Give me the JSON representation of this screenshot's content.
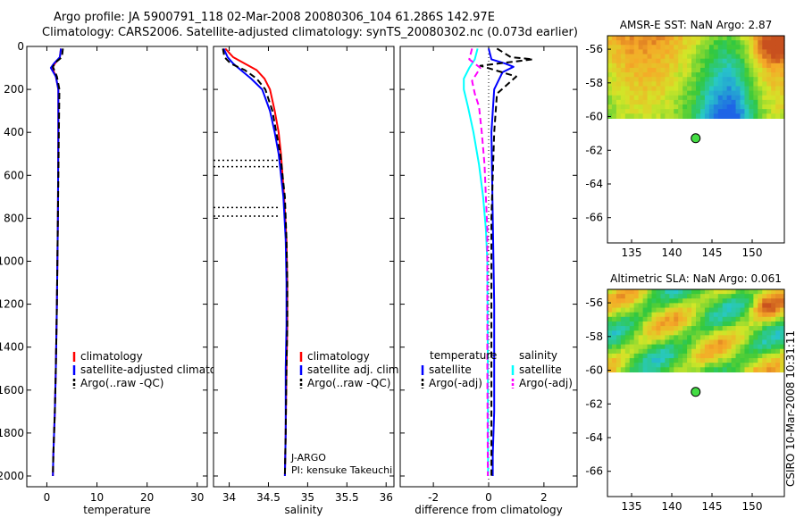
{
  "header": {
    "line1": "Argo profile: JA 5900791_118 02-Mar-2008 20080306_104 61.286S 142.97E",
    "line2": "Climatology: CARS2006. Satellite-adjusted climatology: synTS_20080302.nc (0.073d earlier)"
  },
  "colors": {
    "climatology": "#ff0000",
    "satellite": "#0000ff",
    "argo": "#000000",
    "sal_satellite": "#00ffff",
    "sal_argo": "#ff00ff",
    "float_marker": "#44dd44"
  },
  "chart_data": [
    {
      "id": "temperature",
      "type": "line",
      "xlabel": "temperature",
      "xlim": [
        -4,
        32
      ],
      "ylim": [
        2050,
        0
      ],
      "xticks": [
        "0",
        "10",
        "20",
        "30"
      ],
      "yticks": [
        "0",
        "200",
        "400",
        "600",
        "800",
        "1000",
        "1200",
        "1400",
        "1600",
        "1800",
        "2000"
      ],
      "legend": {
        "position": "lower-center",
        "entries": [
          "climatology",
          "satellite-adjusted climatology",
          "Argo(..raw -QC)"
        ]
      },
      "series": [
        {
          "name": "climatology",
          "color": "#ff0000",
          "style": "solid",
          "x": [
            2.8,
            2.6,
            1.6,
            1.1,
            1.8,
            2.3,
            2.3,
            2.2,
            2.0,
            1.8,
            1.6,
            1.3,
            1.2
          ],
          "y": [
            10,
            50,
            80,
            100,
            140,
            200,
            400,
            800,
            1200,
            1500,
            1700,
            1900,
            2000
          ]
        },
        {
          "name": "satellite-adjusted climatology",
          "color": "#0000ff",
          "style": "solid",
          "x": [
            2.8,
            2.6,
            1.4,
            0.8,
            1.8,
            2.3,
            2.3,
            2.2,
            2.0,
            1.8,
            1.6,
            1.3,
            1.2
          ],
          "y": [
            10,
            50,
            80,
            100,
            140,
            200,
            400,
            800,
            1200,
            1500,
            1700,
            1900,
            2000
          ]
        },
        {
          "name": "Argo(..raw -QC)",
          "color": "#000000",
          "style": "dashed",
          "x": [
            3.2,
            3.0,
            1.7,
            1.2,
            2.0,
            2.5,
            2.4,
            2.2,
            2.0,
            1.8,
            1.6,
            1.3,
            1.2
          ],
          "y": [
            10,
            50,
            75,
            95,
            140,
            200,
            400,
            800,
            1200,
            1500,
            1700,
            1900,
            2000
          ]
        }
      ]
    },
    {
      "id": "salinity",
      "type": "line",
      "xlabel": "salinity",
      "xlim": [
        33.8,
        36.1
      ],
      "ylim": [
        2050,
        0
      ],
      "xticks": [
        "34",
        "34.5",
        "35",
        "35.5",
        "36"
      ],
      "legend": {
        "position": "lower-center",
        "entries": [
          "climatology",
          "satellite adj. clim.",
          "Argo(..raw -QC)"
        ]
      },
      "annotations": [
        "J-ARGO",
        "PI: kensuke Takeuchi"
      ],
      "dotted_ranges": [
        [
          530,
          560
        ],
        [
          750,
          790
        ]
      ],
      "series": [
        {
          "name": "climatology",
          "color": "#ff0000",
          "style": "solid",
          "x": [
            33.95,
            34.05,
            34.2,
            34.35,
            34.45,
            34.52,
            34.58,
            34.63,
            34.66,
            34.7,
            34.73,
            34.74,
            34.74,
            34.73,
            34.72,
            34.71
          ],
          "y": [
            10,
            50,
            80,
            110,
            150,
            200,
            300,
            400,
            500,
            700,
            900,
            1100,
            1300,
            1500,
            1800,
            2000
          ]
        },
        {
          "name": "satellite adj. clim.",
          "color": "#0000ff",
          "style": "solid",
          "x": [
            33.93,
            33.98,
            34.05,
            34.15,
            34.28,
            34.42,
            34.52,
            34.58,
            34.63,
            34.69,
            34.72,
            34.73,
            34.73,
            34.72,
            34.72,
            34.71
          ],
          "y": [
            10,
            50,
            80,
            110,
            150,
            200,
            300,
            400,
            500,
            700,
            900,
            1100,
            1300,
            1500,
            1800,
            2000
          ]
        },
        {
          "name": "Argo(..raw -QC)",
          "color": "#000000",
          "style": "dashed",
          "x": [
            33.92,
            33.94,
            34.02,
            34.2,
            34.35,
            34.46,
            34.55,
            34.6,
            34.65,
            34.71,
            34.73,
            34.74,
            34.74,
            34.73,
            34.72,
            34.71
          ],
          "y": [
            10,
            50,
            80,
            110,
            150,
            200,
            300,
            400,
            500,
            700,
            900,
            1100,
            1300,
            1500,
            1800,
            2000
          ]
        }
      ]
    },
    {
      "id": "difference",
      "type": "line",
      "xlabel": "difference from climatology",
      "xlim": [
        -3.2,
        3.2
      ],
      "ylim": [
        2050,
        0
      ],
      "xticks": [
        "-2",
        "0",
        "2"
      ],
      "legend": {
        "position": "lower-center",
        "temperature_heading": "temperature",
        "salinity_heading": "salinity",
        "entries": [
          "satellite",
          "Argo(-adj)",
          "satellite",
          "Argo(-adj)"
        ]
      },
      "series": [
        {
          "name": "satellite",
          "group": "temperature",
          "color": "#0000ff",
          "style": "solid",
          "x": [
            0.0,
            0.1,
            0.6,
            0.9,
            0.5,
            0.2,
            0.1,
            0.15,
            0.2,
            0.2,
            0.2,
            0.15,
            0.15
          ],
          "y": [
            10,
            60,
            80,
            95,
            120,
            200,
            400,
            800,
            1200,
            1500,
            1700,
            1900,
            2000
          ]
        },
        {
          "name": "Argo(-adj)",
          "group": "temperature",
          "color": "#000000",
          "style": "dashed",
          "x": [
            0.3,
            0.8,
            1.6,
            -0.3,
            1.0,
            0.3,
            0.2,
            0.1,
            0.1,
            0.1,
            0.1,
            0.1,
            0.1
          ],
          "y": [
            10,
            50,
            60,
            90,
            140,
            220,
            400,
            800,
            1200,
            1500,
            1700,
            1900,
            2000
          ]
        },
        {
          "name": "satellite",
          "group": "salinity",
          "color": "#00ffff",
          "style": "solid",
          "x": [
            -0.4,
            -0.5,
            -0.7,
            -0.9,
            -0.9,
            -0.75,
            -0.55,
            -0.35,
            -0.2,
            -0.1,
            -0.05,
            -0.03,
            -0.02
          ],
          "y": [
            10,
            60,
            100,
            150,
            200,
            280,
            400,
            550,
            700,
            850,
            1000,
            1500,
            2000
          ]
        },
        {
          "name": "Argo(-adj)",
          "group": "salinity",
          "color": "#ff00ff",
          "style": "dashed",
          "x": [
            -0.6,
            -0.7,
            -0.3,
            -0.6,
            -0.5,
            -0.35,
            -0.25,
            -0.15,
            -0.1,
            -0.05,
            -0.05,
            -0.05,
            -0.03
          ],
          "y": [
            10,
            60,
            100,
            160,
            220,
            280,
            400,
            550,
            700,
            850,
            1000,
            1500,
            2000
          ]
        }
      ]
    },
    {
      "id": "sst_map",
      "type": "heatmap",
      "title": "AMSR-E SST: NaN Argo: 2.87",
      "xlim": [
        132,
        154
      ],
      "ylim": [
        -67.5,
        -55.2
      ],
      "xticks": [
        "135",
        "140",
        "145",
        "150"
      ],
      "yticks": [
        "-56",
        "-58",
        "-60",
        "-62",
        "-64",
        "-66"
      ],
      "data_extent_lat": [
        -55.2,
        -60.1
      ],
      "float_position": {
        "lon": 142.97,
        "lat": -61.286
      }
    },
    {
      "id": "sla_map",
      "type": "heatmap",
      "title": "Altimetric SLA: NaN Argo: 0.061",
      "xlim": [
        132,
        154
      ],
      "ylim": [
        -67.5,
        -55.2
      ],
      "xticks": [
        "135",
        "140",
        "145",
        "150"
      ],
      "yticks": [
        "-56",
        "-58",
        "-60",
        "-62",
        "-64",
        "-66"
      ],
      "data_extent_lat": [
        -55.2,
        -60.1
      ],
      "float_position": {
        "lon": 142.97,
        "lat": -61.286
      }
    }
  ],
  "footer": {
    "stamp": "CSIRO 10-Mar-2008 10:31:11"
  }
}
